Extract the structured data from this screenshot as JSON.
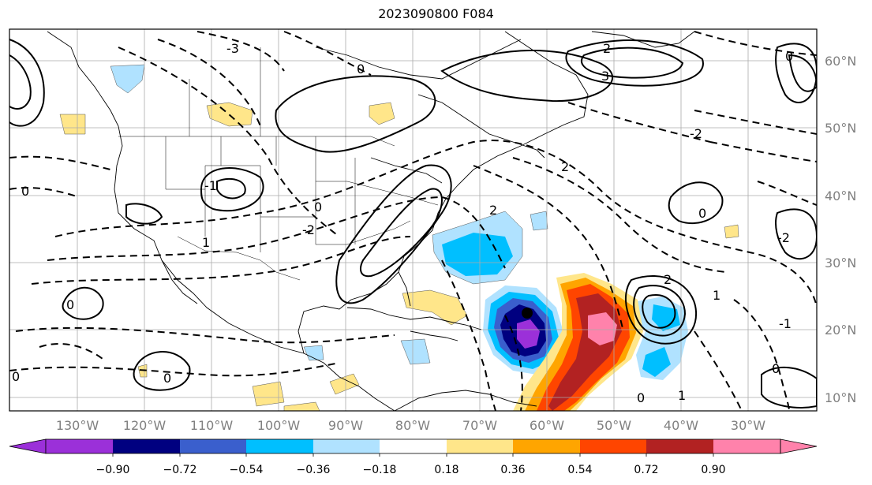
{
  "title": "2023090800 F084",
  "map": {
    "latitude_labels": [
      "60°N",
      "50°N",
      "40°N",
      "30°N",
      "20°N",
      "10°N"
    ],
    "longitude_labels": [
      "130°W",
      "120°W",
      "110°W",
      "100°W",
      "90°W",
      "80°W",
      "70°W",
      "60°W",
      "50°W",
      "40°W",
      "30°W"
    ],
    "contour_labels": [
      "-3",
      "-2",
      "-1",
      "0",
      "1",
      "2",
      "3"
    ]
  },
  "colorbar": {
    "tick_labels": [
      "−0.90",
      "−0.72",
      "−0.54",
      "−0.36",
      "−0.18",
      "0.18",
      "0.36",
      "0.54",
      "0.72",
      "0.90"
    ],
    "colors": [
      "#9b30d9",
      "#000080",
      "#3a5fcd",
      "#00bfff",
      "#b0e2ff",
      "#ffffff",
      "#ffe68a",
      "#ffa500",
      "#ff4500",
      "#b22222",
      "#ff82ab"
    ],
    "extend": "both"
  },
  "chart_data": {
    "type": "heatmap",
    "title": "2023090800 F084",
    "xlabel": "",
    "ylabel": "",
    "lon_range": [
      -138,
      -17
    ],
    "lat_range": [
      7.5,
      65
    ],
    "shading_levels": [
      -0.9,
      -0.72,
      -0.54,
      -0.36,
      -0.18,
      0.18,
      0.36,
      0.54,
      0.72,
      0.9
    ],
    "contour_levels": [
      -3,
      -2,
      -1,
      0,
      1,
      2,
      3
    ],
    "grid": true
  }
}
